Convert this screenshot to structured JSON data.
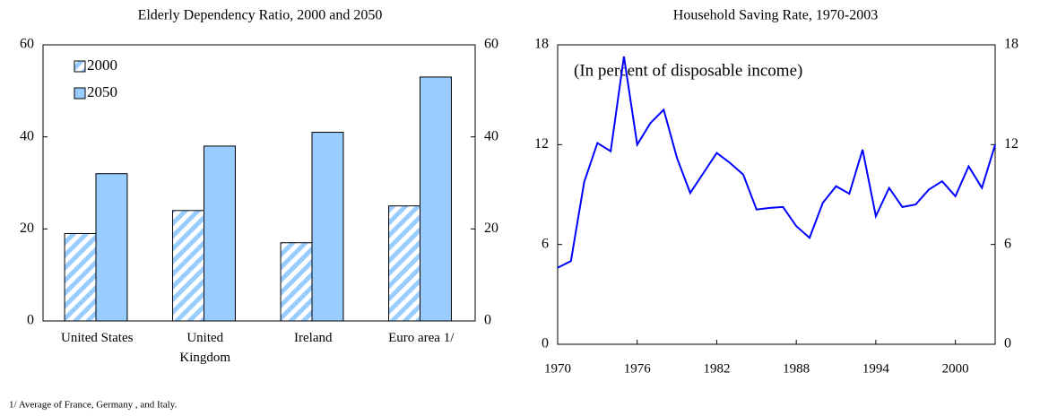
{
  "chart_data": [
    {
      "type": "bar",
      "title": "Elderly Dependency Ratio, 2000 and 2050",
      "categories": [
        "United States",
        "United Kingdom",
        "Ireland",
        "Euro area 1/"
      ],
      "series": [
        {
          "name": "2000",
          "color": "#99ccff",
          "hatch": true,
          "values": [
            19,
            24,
            17,
            25
          ]
        },
        {
          "name": "2050",
          "color": "#99ccff",
          "hatch": false,
          "values": [
            32,
            38,
            41,
            53
          ]
        }
      ],
      "ylim": [
        0,
        60
      ],
      "yticks": [
        0,
        20,
        40,
        60
      ],
      "legend": "top-left"
    },
    {
      "type": "line",
      "title": "Household Saving Rate, 1970-2003",
      "annotation": "(In percent of disposable income)",
      "color": "#0000ff",
      "x": [
        1970,
        1971,
        1972,
        1973,
        1974,
        1975,
        1976,
        1977,
        1978,
        1979,
        1980,
        1981,
        1982,
        1983,
        1984,
        1985,
        1986,
        1987,
        1988,
        1989,
        1990,
        1991,
        1992,
        1993,
        1994,
        1995,
        1996,
        1997,
        1998,
        1999,
        2000,
        2001,
        2002,
        2003
      ],
      "values": [
        4.6,
        5.0,
        9.75,
        12.1,
        11.6,
        17.3,
        12.0,
        13.3,
        14.1,
        11.2,
        9.1,
        10.3,
        11.5,
        10.9,
        10.2,
        8.1,
        8.2,
        8.25,
        7.1,
        6.4,
        8.5,
        9.5,
        9.05,
        11.7,
        7.7,
        9.4,
        8.25,
        8.4,
        9.3,
        9.8,
        8.9,
        10.7,
        9.4,
        12.0
      ],
      "xlim": [
        1970,
        2003
      ],
      "xticks": [
        1970,
        1976,
        1982,
        1988,
        1994,
        2000
      ],
      "ylim": [
        0,
        18
      ],
      "yticks": [
        0,
        6,
        12,
        18
      ]
    }
  ],
  "footnote": "1/  Average of France, Germany , and Italy."
}
